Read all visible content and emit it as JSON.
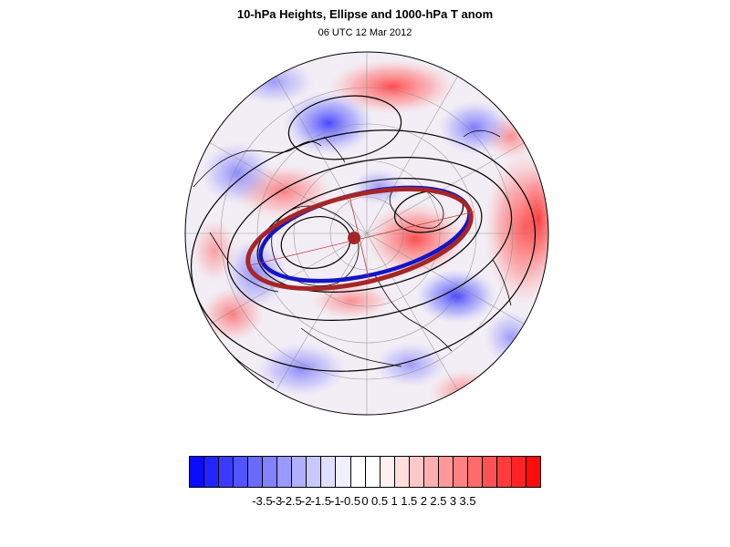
{
  "header": {
    "title": "10-hPa Heights, Ellipse and 1000-hPa T anom",
    "subtitle": "06 UTC 12 Mar 2012"
  },
  "colors": {
    "cold_anomaly": "#1e1ef5",
    "warm_anomaly": "#ff2020",
    "ellipse": "#a52626",
    "vortex_edge": "#1414c8",
    "contour": "#000000"
  },
  "colorbar": {
    "labels": [
      "-3.5",
      "-3",
      "-2.5",
      "-2",
      "-1.5",
      "-1",
      "-0.5",
      "0",
      "0.5",
      "1",
      "1.5",
      "2",
      "2.5",
      "3",
      "3.5"
    ],
    "swatches": [
      "#0b0bff",
      "#2323ff",
      "#3b3bff",
      "#5353ff",
      "#6a6aff",
      "#8282ff",
      "#9999ff",
      "#b0b0ff",
      "#c8c8ff",
      "#dedeff",
      "#f0f0ff",
      "#ffffff",
      "#ffffff",
      "#fff0f0",
      "#ffdede",
      "#ffc8c8",
      "#ffb0b0",
      "#ff9999",
      "#ff8282",
      "#ff6a6a",
      "#ff5353",
      "#ff3b3b",
      "#ff2323",
      "#ff0b0b"
    ]
  }
}
